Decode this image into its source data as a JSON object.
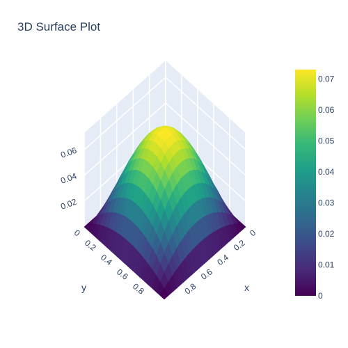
{
  "chart_data": {
    "type": "surface",
    "title": "3D Surface Plot",
    "function": "z = x(1-x) · y(1-y) on a 20×20 grid",
    "x": {
      "title": "x",
      "range": [
        0,
        1
      ],
      "ticks": [
        "0",
        "0.2",
        "0.4",
        "0.6",
        "0.8"
      ]
    },
    "y": {
      "title": "y",
      "range": [
        0,
        1
      ],
      "ticks": [
        "0",
        "0.2",
        "0.4",
        "0.6",
        "0.8"
      ]
    },
    "z": {
      "title": "",
      "range": [
        0,
        0.073
      ],
      "ticks": [
        "0",
        "0.02",
        "0.04",
        "0.06"
      ]
    },
    "colorscale": "Viridis",
    "colorscale_stops": [
      "#440154",
      "#482878",
      "#3e4989",
      "#31688e",
      "#26828e",
      "#1f9e89",
      "#35b779",
      "#6ece58",
      "#b5de2b",
      "#fde725"
    ],
    "colorbar": {
      "ticks": [
        "0",
        "0.01",
        "0.02",
        "0.03",
        "0.04",
        "0.05",
        "0.06",
        "0.07"
      ],
      "range": [
        0,
        0.073
      ]
    },
    "grid": true,
    "scene_background": "#e5ecf6"
  }
}
